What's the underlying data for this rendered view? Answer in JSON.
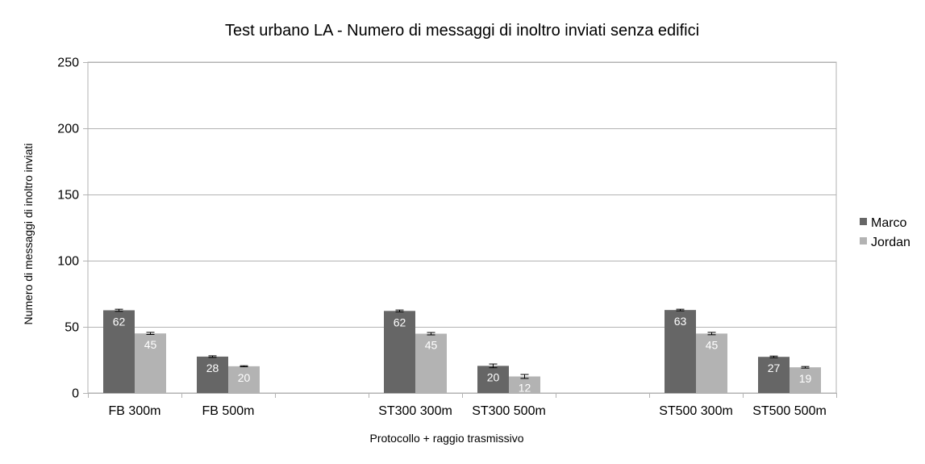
{
  "chart_data": {
    "type": "bar",
    "title": "Test urbano LA - Numero di messaggi di inoltro inviati senza edifici",
    "xlabel": "Protocollo + raggio trasmissivo",
    "ylabel": "Numero di messaggi di inoltro inviati",
    "ylim": [
      0,
      250
    ],
    "yticks": [
      0,
      50,
      100,
      150,
      200,
      250
    ],
    "grid": true,
    "legend_position": "right",
    "categories": [
      "FB 300m",
      "FB 500m",
      "",
      "ST300 300m",
      "ST300 500m",
      "",
      "ST500 300m",
      "ST500 500m"
    ],
    "series": [
      {
        "name": "Marco",
        "color": "#666666",
        "values": [
          62.5,
          27.5,
          null,
          62,
          20.5,
          null,
          62.7,
          27.3
        ],
        "labels": [
          "62",
          "28",
          "",
          "62",
          "20",
          "",
          "63",
          "27"
        ],
        "errors": [
          0.8,
          0.6,
          null,
          0.7,
          1.4,
          null,
          0.6,
          0.6
        ]
      },
      {
        "name": "Jordan",
        "color": "#b3b3b3",
        "values": [
          45,
          20.2,
          null,
          44.8,
          12.5,
          null,
          44.9,
          19.4
        ],
        "labels": [
          "45",
          "20",
          "",
          "45",
          "12",
          "",
          "45",
          "19"
        ],
        "errors": [
          0.8,
          0.4,
          null,
          0.9,
          1.5,
          null,
          0.9,
          0.6
        ]
      }
    ]
  }
}
